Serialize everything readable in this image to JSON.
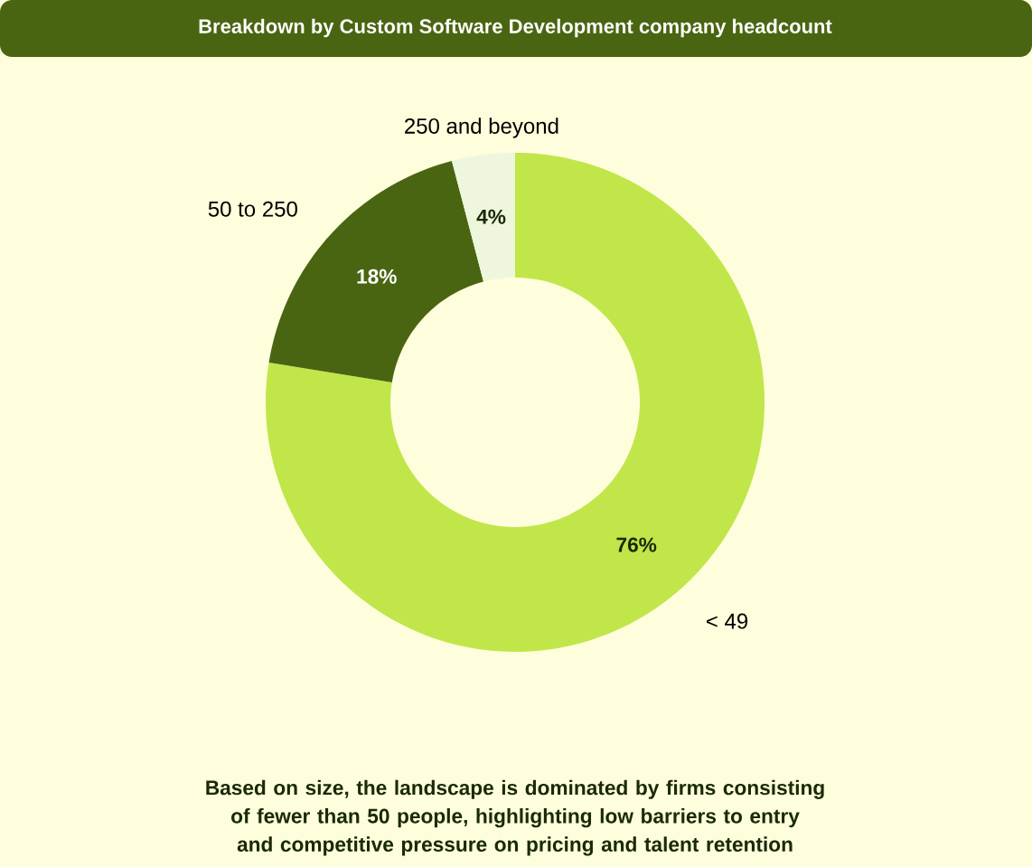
{
  "chart_data": {
    "type": "donut",
    "title": "Breakdown by Custom Software Development company headcount",
    "categories": [
      "< 49",
      "50 to 250",
      "250 and beyond"
    ],
    "values": [
      76,
      18,
      4
    ],
    "colors": [
      "#c1e64a",
      "#4a6511",
      "#eef7dd"
    ],
    "value_labels": [
      "76%",
      "18%",
      "4%"
    ],
    "annotations": [
      "Based on size, the landscape is dominated by firms consisting of fewer than 50 people, highlighting low barriers to entry and competitive pressure on pricing and talent retention"
    ]
  }
}
